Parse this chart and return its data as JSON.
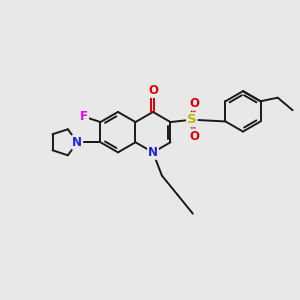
{
  "background_color": "#e8e8e8",
  "figsize": [
    3.0,
    3.0
  ],
  "dpi": 100,
  "bond_color": "#1a1a1a",
  "atom_colors": {
    "N": "#2222dd",
    "O": "#dd0000",
    "F": "#ee00ee",
    "S": "#bbbb00",
    "C": "#1a1a1a"
  },
  "bond_width": 1.4,
  "font_size_atom": 8.5
}
